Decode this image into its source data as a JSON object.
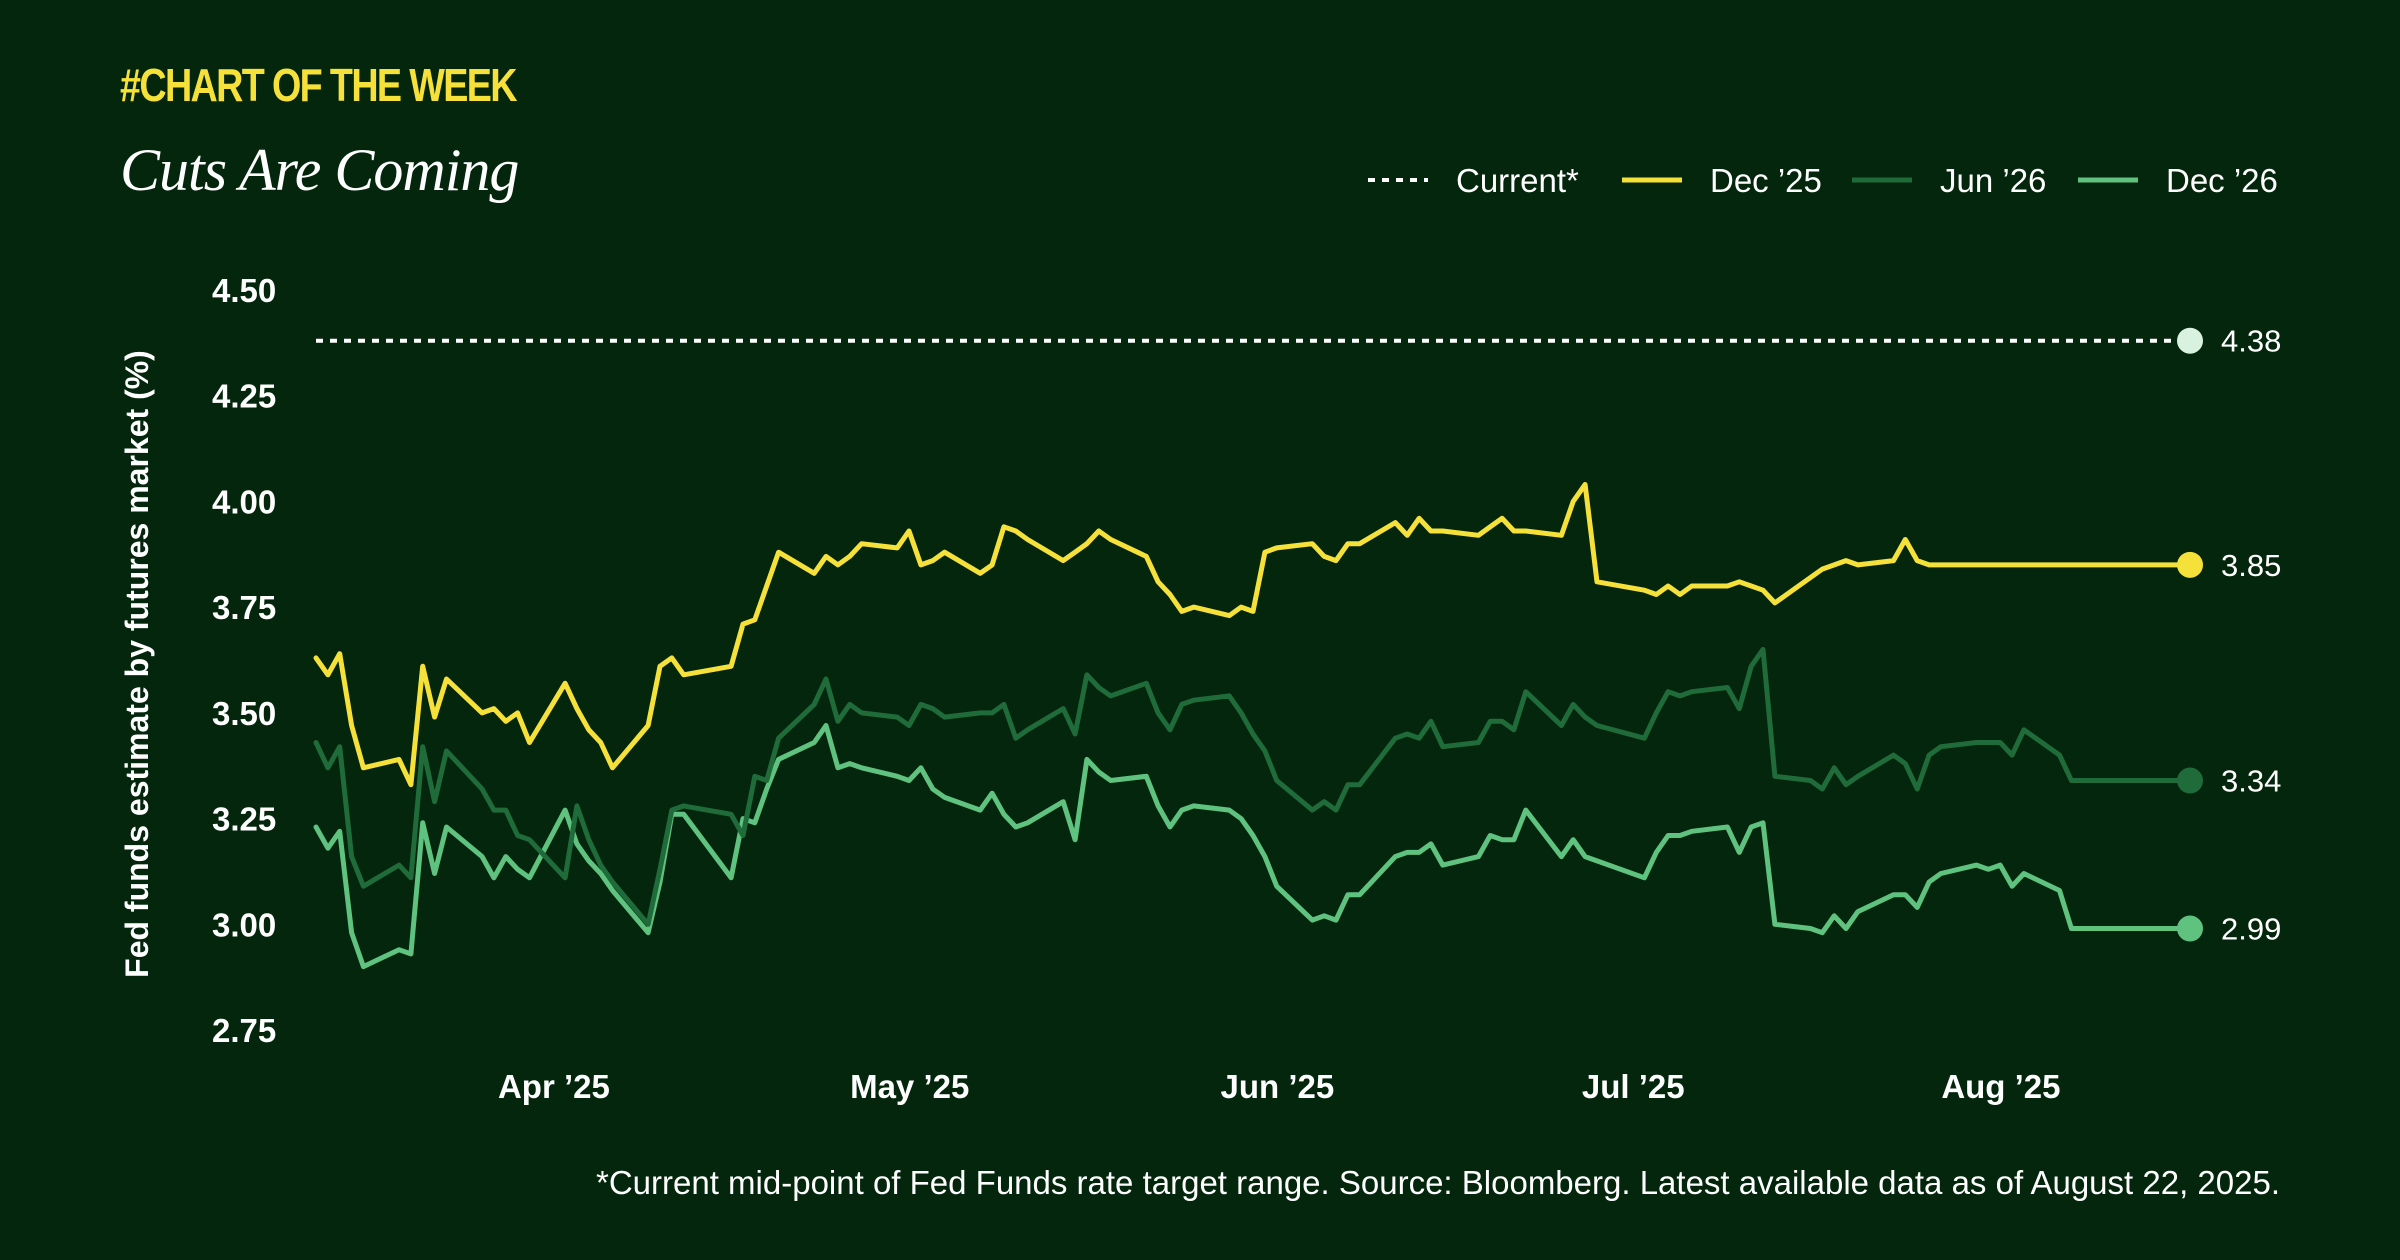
{
  "header": {
    "kicker": "#CHART OF THE WEEK",
    "title": "Cuts Are Coming"
  },
  "footnote": "*Current mid-point of Fed Funds rate target range. Source: Bloomberg. Latest available data as of August 22, 2025.",
  "colors": {
    "background": "#03260c",
    "current": "#ffffff",
    "dec25": "#f5e13a",
    "jun26": "#1f6b39",
    "dec26": "#5fc27f",
    "current_dot": "#d9f2df"
  },
  "chart_data": {
    "type": "line",
    "ylabel": "Fed funds estimate by futures market (%)",
    "ylim": [
      2.75,
      4.5
    ],
    "yticks": [
      "4.50",
      "4.25",
      "4.00",
      "3.75",
      "3.50",
      "3.25",
      "3.00",
      "2.75"
    ],
    "xlim": [
      "2025-03-17",
      "2025-08-22"
    ],
    "xticks": [
      {
        "label": "Apr ’25",
        "date": "2025-04-01"
      },
      {
        "label": "May ’25",
        "date": "2025-05-01"
      },
      {
        "label": "Jun ’25",
        "date": "2025-06-01"
      },
      {
        "label": "Jul ’25",
        "date": "2025-07-01"
      },
      {
        "label": "Aug ’25",
        "date": "2025-08-01"
      }
    ],
    "legend_position": "top-right",
    "x": [
      "2025-03-17",
      "2025-03-18",
      "2025-03-19",
      "2025-03-20",
      "2025-03-21",
      "2025-03-24",
      "2025-03-25",
      "2025-03-26",
      "2025-03-27",
      "2025-03-28",
      "2025-03-31",
      "2025-04-01",
      "2025-04-02",
      "2025-04-03",
      "2025-04-04",
      "2025-04-07",
      "2025-04-08",
      "2025-04-09",
      "2025-04-10",
      "2025-04-11",
      "2025-04-14",
      "2025-04-15",
      "2025-04-16",
      "2025-04-17",
      "2025-04-21",
      "2025-04-22",
      "2025-04-23",
      "2025-04-24",
      "2025-04-25",
      "2025-04-28",
      "2025-04-29",
      "2025-04-30",
      "2025-05-01",
      "2025-05-02",
      "2025-05-05",
      "2025-05-06",
      "2025-05-07",
      "2025-05-08",
      "2025-05-09",
      "2025-05-12",
      "2025-05-13",
      "2025-05-14",
      "2025-05-15",
      "2025-05-16",
      "2025-05-19",
      "2025-05-20",
      "2025-05-21",
      "2025-05-22",
      "2025-05-23",
      "2025-05-26",
      "2025-05-27",
      "2025-05-28",
      "2025-05-29",
      "2025-05-30",
      "2025-06-02",
      "2025-06-03",
      "2025-06-04",
      "2025-06-05",
      "2025-06-06",
      "2025-06-09",
      "2025-06-10",
      "2025-06-11",
      "2025-06-12",
      "2025-06-13",
      "2025-06-16",
      "2025-06-17",
      "2025-06-18",
      "2025-06-19",
      "2025-06-20",
      "2025-06-23",
      "2025-06-24",
      "2025-06-25",
      "2025-06-26",
      "2025-06-27",
      "2025-06-30",
      "2025-07-01",
      "2025-07-02",
      "2025-07-03",
      "2025-07-07",
      "2025-07-08",
      "2025-07-09",
      "2025-07-10",
      "2025-07-11",
      "2025-07-14",
      "2025-07-15",
      "2025-07-16",
      "2025-07-17",
      "2025-07-18",
      "2025-07-21",
      "2025-07-22",
      "2025-07-23",
      "2025-07-24",
      "2025-07-25",
      "2025-07-28",
      "2025-07-29",
      "2025-07-30",
      "2025-07-31",
      "2025-08-01",
      "2025-08-04",
      "2025-08-05",
      "2025-08-06",
      "2025-08-07",
      "2025-08-08",
      "2025-08-11",
      "2025-08-12",
      "2025-08-13",
      "2025-08-14",
      "2025-08-15",
      "2025-08-18",
      "2025-08-19",
      "2025-08-20",
      "2025-08-21",
      "2025-08-22"
    ],
    "series": [
      {
        "name": "Current*",
        "key": "current",
        "style": "dotted",
        "end_label": "4.38",
        "values": [
          4.38,
          4.38,
          4.38,
          4.38,
          4.38,
          4.38,
          4.38,
          4.38,
          4.38,
          4.38,
          4.38,
          4.38,
          4.38,
          4.38,
          4.38,
          4.38,
          4.38,
          4.38,
          4.38,
          4.38,
          4.38,
          4.38,
          4.38,
          4.38,
          4.38,
          4.38,
          4.38,
          4.38,
          4.38,
          4.38,
          4.38,
          4.38,
          4.38,
          4.38,
          4.38,
          4.38,
          4.38,
          4.38,
          4.38,
          4.38,
          4.38,
          4.38,
          4.38,
          4.38,
          4.38,
          4.38,
          4.38,
          4.38,
          4.38,
          4.38,
          4.38,
          4.38,
          4.38,
          4.38,
          4.38,
          4.38,
          4.38,
          4.38,
          4.38,
          4.38,
          4.38,
          4.38,
          4.38,
          4.38,
          4.38,
          4.38,
          4.38,
          4.38,
          4.38,
          4.38,
          4.38,
          4.38,
          4.38,
          4.38,
          4.38,
          4.38,
          4.38,
          4.38,
          4.38,
          4.38,
          4.38,
          4.38,
          4.38,
          4.38,
          4.38,
          4.38,
          4.38,
          4.38,
          4.38,
          4.38,
          4.38,
          4.38,
          4.38,
          4.38,
          4.38,
          4.38,
          4.38,
          4.38,
          4.38,
          4.38,
          4.38,
          4.38,
          4.38,
          4.38,
          4.38,
          4.38,
          4.38,
          4.38,
          4.38,
          4.38,
          4.38,
          4.38,
          4.38
        ]
      },
      {
        "name": "Dec ’25",
        "key": "dec25",
        "style": "solid",
        "end_label": "3.85",
        "values": [
          3.63,
          3.59,
          3.64,
          3.47,
          3.37,
          3.39,
          3.33,
          3.61,
          3.49,
          3.58,
          3.5,
          3.51,
          3.48,
          3.5,
          3.43,
          3.57,
          3.51,
          3.46,
          3.43,
          3.37,
          3.47,
          3.61,
          3.63,
          3.59,
          3.61,
          3.71,
          3.72,
          3.8,
          3.88,
          3.83,
          3.87,
          3.85,
          3.87,
          3.9,
          3.89,
          3.93,
          3.85,
          3.86,
          3.88,
          3.83,
          3.85,
          3.94,
          3.93,
          3.91,
          3.86,
          3.88,
          3.9,
          3.93,
          3.91,
          3.87,
          3.81,
          3.78,
          3.74,
          3.75,
          3.73,
          3.75,
          3.74,
          3.88,
          3.89,
          3.9,
          3.87,
          3.86,
          3.9,
          3.9,
          3.95,
          3.92,
          3.96,
          3.93,
          3.93,
          3.92,
          3.94,
          3.96,
          3.93,
          3.93,
          3.92,
          4.0,
          4.04,
          3.81,
          3.79,
          3.78,
          3.8,
          3.78,
          3.8,
          3.8,
          3.81,
          3.8,
          3.79,
          3.76,
          3.82,
          3.84,
          3.85,
          3.86,
          3.85,
          3.86,
          3.91,
          3.86,
          3.85,
          3.85,
          3.85,
          3.85,
          3.85,
          3.85,
          3.85,
          3.85,
          3.85,
          3.85,
          3.85,
          3.85,
          3.85,
          3.85,
          3.85,
          3.85,
          3.85
        ]
      },
      {
        "name": "Jun ’26",
        "key": "jun26",
        "style": "solid",
        "end_label": "3.34",
        "values": [
          3.43,
          3.37,
          3.42,
          3.16,
          3.09,
          3.14,
          3.11,
          3.42,
          3.29,
          3.41,
          3.32,
          3.27,
          3.27,
          3.21,
          3.2,
          3.11,
          3.28,
          3.2,
          3.14,
          3.1,
          3.0,
          3.13,
          3.27,
          3.28,
          3.26,
          3.21,
          3.35,
          3.34,
          3.44,
          3.52,
          3.58,
          3.48,
          3.52,
          3.5,
          3.49,
          3.47,
          3.52,
          3.51,
          3.49,
          3.5,
          3.5,
          3.52,
          3.44,
          3.46,
          3.51,
          3.45,
          3.59,
          3.56,
          3.54,
          3.57,
          3.5,
          3.46,
          3.52,
          3.53,
          3.54,
          3.5,
          3.45,
          3.41,
          3.34,
          3.27,
          3.29,
          3.27,
          3.33,
          3.33,
          3.44,
          3.45,
          3.44,
          3.48,
          3.42,
          3.43,
          3.48,
          3.48,
          3.46,
          3.55,
          3.47,
          3.52,
          3.49,
          3.47,
          3.44,
          3.5,
          3.55,
          3.54,
          3.55,
          3.56,
          3.51,
          3.61,
          3.65,
          3.35,
          3.34,
          3.32,
          3.37,
          3.33,
          3.35,
          3.4,
          3.38,
          3.32,
          3.4,
          3.42,
          3.43,
          3.43,
          3.43,
          3.4,
          3.46,
          3.4,
          3.34,
          3.34,
          3.34,
          3.34,
          3.34,
          3.34,
          3.34,
          3.34,
          3.34
        ]
      },
      {
        "name": "Dec ’26",
        "key": "dec26",
        "style": "solid",
        "end_label": "2.99",
        "values": [
          3.23,
          3.18,
          3.22,
          2.98,
          2.9,
          2.94,
          2.93,
          3.24,
          3.12,
          3.23,
          3.16,
          3.11,
          3.16,
          3.13,
          3.11,
          3.27,
          3.19,
          3.15,
          3.12,
          3.08,
          2.98,
          3.1,
          3.26,
          3.26,
          3.11,
          3.25,
          3.24,
          3.32,
          3.39,
          3.43,
          3.47,
          3.37,
          3.38,
          3.37,
          3.35,
          3.34,
          3.37,
          3.32,
          3.3,
          3.27,
          3.31,
          3.26,
          3.23,
          3.24,
          3.29,
          3.2,
          3.39,
          3.36,
          3.34,
          3.35,
          3.28,
          3.23,
          3.27,
          3.28,
          3.27,
          3.25,
          3.21,
          3.16,
          3.09,
          3.01,
          3.02,
          3.01,
          3.07,
          3.07,
          3.16,
          3.17,
          3.17,
          3.19,
          3.14,
          3.16,
          3.21,
          3.2,
          3.2,
          3.27,
          3.16,
          3.2,
          3.16,
          3.15,
          3.11,
          3.17,
          3.21,
          3.21,
          3.22,
          3.23,
          3.17,
          3.23,
          3.24,
          3.0,
          2.99,
          2.98,
          3.02,
          2.99,
          3.03,
          3.07,
          3.07,
          3.04,
          3.1,
          3.12,
          3.14,
          3.13,
          3.14,
          3.09,
          3.12,
          3.08,
          2.99,
          2.99,
          2.99,
          2.99,
          2.99,
          2.99,
          2.99,
          2.99,
          2.99
        ]
      }
    ]
  }
}
